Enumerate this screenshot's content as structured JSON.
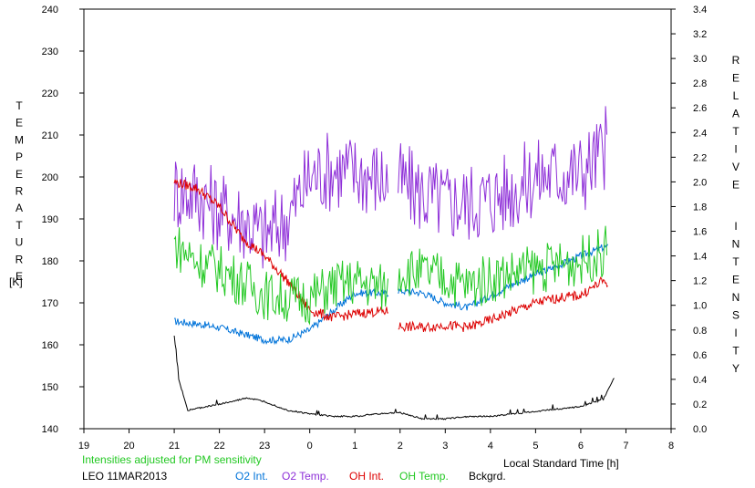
{
  "chart_data": {
    "type": "line",
    "left_axis": {
      "label": "TEMPERATURE",
      "unit": "[K]",
      "range": [
        140,
        240
      ],
      "ticks": [
        "140",
        "150",
        "160",
        "170",
        "180",
        "190",
        "200",
        "210",
        "220",
        "230",
        "240"
      ]
    },
    "right_axis": {
      "label": "RELATIVE INTENSITY",
      "range": [
        0.0,
        3.4
      ],
      "ticks": [
        "0.0",
        "0.2",
        "0.4",
        "0.6",
        "0.8",
        "1.0",
        "1.2",
        "1.4",
        "1.6",
        "1.8",
        "2.0",
        "2.2",
        "2.4",
        "2.6",
        "2.8",
        "3.0",
        "3.2",
        "3.4"
      ]
    },
    "x_axis": {
      "label": "Local Standard Time [h]",
      "ticks": [
        "19",
        "20",
        "21",
        "22",
        "23",
        "0",
        "1",
        "2",
        "3",
        "4",
        "5",
        "6",
        "7",
        "8"
      ]
    },
    "note": "Intensities adjusted for PM sensitivity",
    "station": "LEO 11MAR2013",
    "gap": [
      1.75,
      1.95
    ],
    "legend_placement": "bottom",
    "series": [
      {
        "name": "O2 Int.",
        "color": "#0073d9",
        "axis": "right",
        "x": [
          21.0,
          21.5,
          22.0,
          22.5,
          23.0,
          23.5,
          0.0,
          0.5,
          1.0,
          1.5,
          1.75,
          1.95,
          2.5,
          3.0,
          3.5,
          4.0,
          4.5,
          5.0,
          5.5,
          6.0,
          6.5,
          6.6
        ],
        "values": [
          0.87,
          0.85,
          0.82,
          0.77,
          0.72,
          0.72,
          0.8,
          0.95,
          1.1,
          1.1,
          1.1,
          1.12,
          1.1,
          1.02,
          0.98,
          1.08,
          1.17,
          1.25,
          1.32,
          1.4,
          1.47,
          1.47
        ]
      },
      {
        "name": "O2 Temp.",
        "color": "#8e2fd8",
        "axis": "left",
        "x": [
          21.0,
          21.5,
          22.0,
          22.5,
          23.0,
          23.5,
          0.0,
          0.5,
          1.0,
          1.5,
          1.75,
          1.95,
          2.5,
          3.0,
          3.5,
          4.0,
          4.5,
          5.0,
          5.5,
          6.0,
          6.5,
          6.6
        ],
        "values": [
          197,
          196,
          192,
          190,
          186,
          190,
          200,
          202,
          201,
          200,
          199,
          199,
          196,
          194,
          194,
          195,
          197,
          200,
          201,
          201,
          206,
          209
        ]
      },
      {
        "name": "OH Int.",
        "color": "#dd0000",
        "axis": "right",
        "x": [
          21.0,
          21.5,
          22.0,
          22.5,
          23.0,
          23.5,
          0.0,
          0.5,
          1.0,
          1.5,
          1.75,
          1.95,
          2.5,
          3.0,
          3.5,
          4.0,
          4.5,
          5.0,
          5.5,
          6.0,
          6.5,
          6.6
        ],
        "values": [
          2.0,
          1.95,
          1.8,
          1.55,
          1.4,
          1.2,
          0.96,
          0.9,
          0.93,
          0.95,
          0.95,
          0.83,
          0.82,
          0.84,
          0.82,
          0.88,
          0.95,
          1.02,
          1.06,
          1.08,
          1.2,
          1.18
        ]
      },
      {
        "name": "OH Temp.",
        "color": "#22c822",
        "axis": "left",
        "x": [
          21.0,
          21.5,
          22.0,
          22.5,
          23.0,
          23.5,
          0.0,
          0.5,
          1.0,
          1.5,
          1.75,
          1.95,
          2.5,
          3.0,
          3.5,
          4.0,
          4.5,
          5.0,
          5.5,
          6.0,
          6.5,
          6.6
        ],
        "values": [
          184,
          180,
          178,
          175,
          172,
          171,
          171,
          174,
          175,
          174,
          173,
          178,
          177,
          176,
          174,
          176,
          177,
          178,
          179,
          180,
          182,
          183
        ]
      },
      {
        "name": "Bckgrd.",
        "color": "#000000",
        "axis": "right",
        "x": [
          21.0,
          21.1,
          21.3,
          21.6,
          22.0,
          22.3,
          22.6,
          23.0,
          23.5,
          0.0,
          0.5,
          1.0,
          1.5,
          2.0,
          2.5,
          3.0,
          3.5,
          4.0,
          4.5,
          5.0,
          5.5,
          6.0,
          6.5,
          6.75
        ],
        "values": [
          0.75,
          0.4,
          0.15,
          0.17,
          0.2,
          0.22,
          0.25,
          0.22,
          0.15,
          0.12,
          0.1,
          0.1,
          0.12,
          0.13,
          0.08,
          0.08,
          0.1,
          0.1,
          0.12,
          0.14,
          0.16,
          0.18,
          0.24,
          0.42
        ]
      }
    ]
  }
}
